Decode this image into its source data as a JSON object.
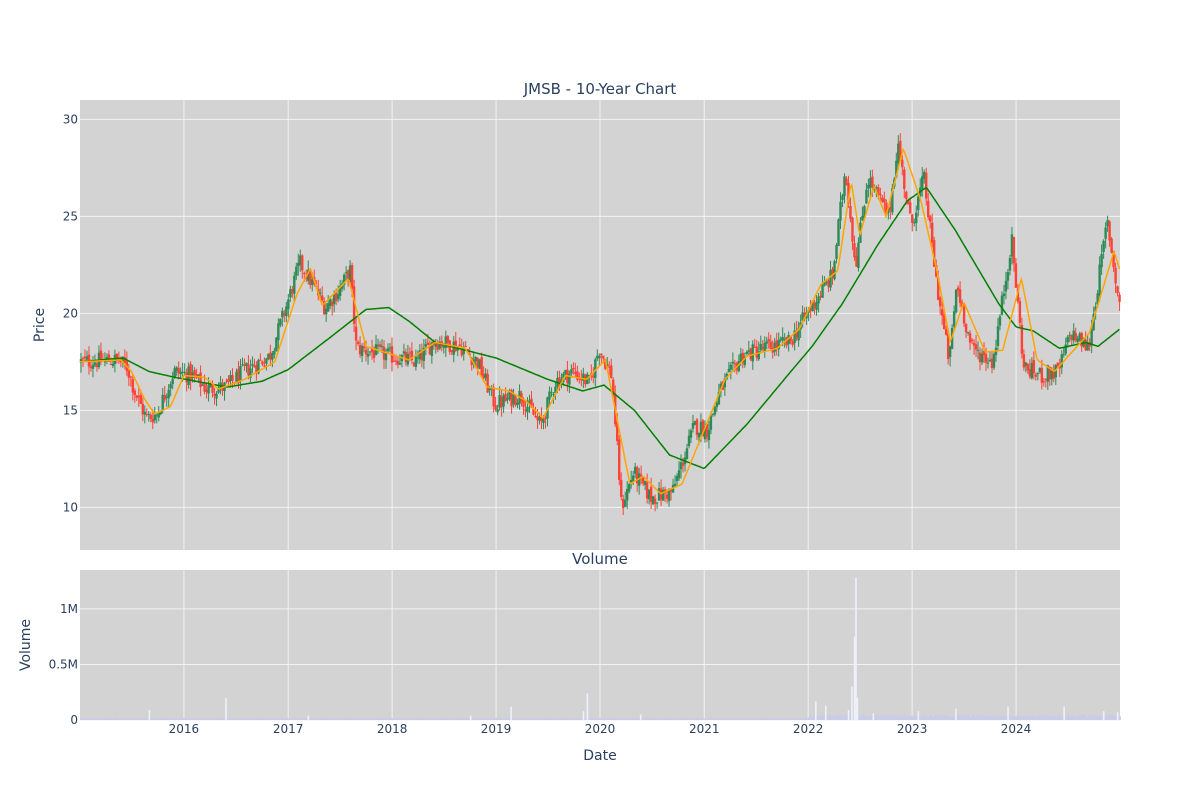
{
  "chart_data": [
    {
      "type": "candlestick",
      "title": "JMSB - 10-Year Chart",
      "xlabel": "",
      "ylabel": "Price",
      "xlim": [
        "2015-01-01",
        "2024-12-31"
      ],
      "ylim": [
        7.8,
        31
      ],
      "yticks": [
        10,
        15,
        20,
        25,
        30
      ],
      "xticks": [
        "2016",
        "2017",
        "2018",
        "2019",
        "2020",
        "2021",
        "2022",
        "2023",
        "2024"
      ],
      "grid": true,
      "legend": "none",
      "colors": {
        "up": "#2e8b57",
        "down": "#ff4136",
        "fast_ma": "#ffa500",
        "slow_ma": "#008000",
        "plot_bg": "#d3d3d3",
        "grid": "#f2f2f2"
      },
      "price_path": [
        [
          "2015-01-01",
          17.5
        ],
        [
          "2015-05-20",
          17.6
        ],
        [
          "2015-06-20",
          17.2
        ],
        [
          "2015-07-15",
          16.0
        ],
        [
          "2015-08-25",
          14.6
        ],
        [
          "2015-10-01",
          14.8
        ],
        [
          "2015-12-01",
          17.0
        ],
        [
          "2016-02-01",
          16.8
        ],
        [
          "2016-03-25",
          16.1
        ],
        [
          "2016-06-01",
          16.2
        ],
        [
          "2016-08-01",
          17.0
        ],
        [
          "2016-11-01",
          17.8
        ],
        [
          "2017-01-01",
          20.5
        ],
        [
          "2017-02-15",
          22.6
        ],
        [
          "2017-04-01",
          21.5
        ],
        [
          "2017-05-15",
          20.3
        ],
        [
          "2017-07-01",
          21.2
        ],
        [
          "2017-08-10",
          22.2
        ],
        [
          "2017-09-01",
          18.2
        ],
        [
          "2018-01-01",
          17.8
        ],
        [
          "2018-04-01",
          17.5
        ],
        [
          "2018-06-01",
          18.6
        ],
        [
          "2018-09-01",
          18.3
        ],
        [
          "2018-11-01",
          17.5
        ],
        [
          "2019-01-01",
          15.3
        ],
        [
          "2019-04-01",
          15.8
        ],
        [
          "2019-06-10",
          14.2
        ],
        [
          "2019-08-01",
          16.5
        ],
        [
          "2019-10-01",
          17.0
        ],
        [
          "2019-12-01",
          16.4
        ],
        [
          "2020-01-01",
          18.2
        ],
        [
          "2020-02-15",
          16.8
        ],
        [
          "2020-03-20",
          10.0
        ],
        [
          "2020-05-01",
          11.8
        ],
        [
          "2020-07-01",
          10.5
        ],
        [
          "2020-09-15",
          10.8
        ],
        [
          "2020-12-01",
          14.2
        ],
        [
          "2021-01-15",
          14.0
        ],
        [
          "2021-03-01",
          16.0
        ],
        [
          "2021-05-15",
          17.8
        ],
        [
          "2021-08-01",
          18.2
        ],
        [
          "2021-11-01",
          18.5
        ],
        [
          "2022-01-01",
          20.0
        ],
        [
          "2022-04-01",
          22.0
        ],
        [
          "2022-05-15",
          27.5
        ],
        [
          "2022-06-20",
          22.5
        ],
        [
          "2022-08-01",
          27.0
        ],
        [
          "2022-10-15",
          25.0
        ],
        [
          "2022-11-15",
          28.8
        ],
        [
          "2023-01-01",
          24.5
        ],
        [
          "2023-02-15",
          27.0
        ],
        [
          "2023-04-01",
          21.5
        ],
        [
          "2023-05-15",
          17.5
        ],
        [
          "2023-06-10",
          21.5
        ],
        [
          "2023-08-01",
          18.2
        ],
        [
          "2023-10-15",
          17.5
        ],
        [
          "2023-12-20",
          23.8
        ],
        [
          "2024-02-01",
          17.2
        ],
        [
          "2024-04-01",
          16.8
        ],
        [
          "2024-06-01",
          17.0
        ],
        [
          "2024-07-15",
          19.0
        ],
        [
          "2024-09-15",
          18.2
        ],
        [
          "2024-11-20",
          24.8
        ],
        [
          "2024-12-31",
          20.5
        ]
      ],
      "moving_average_fast": [
        [
          "2015-01-01",
          17.5
        ],
        [
          "2015-05-25",
          17.6
        ],
        [
          "2015-07-01",
          17.0
        ],
        [
          "2015-08-15",
          15.6
        ],
        [
          "2015-09-20",
          14.8
        ],
        [
          "2015-11-15",
          15.2
        ],
        [
          "2016-01-01",
          16.8
        ],
        [
          "2016-03-15",
          16.7
        ],
        [
          "2016-05-01",
          16.1
        ],
        [
          "2016-08-01",
          16.6
        ],
        [
          "2016-11-15",
          17.5
        ],
        [
          "2017-02-01",
          21.0
        ],
        [
          "2017-03-20",
          22.3
        ],
        [
          "2017-05-01",
          20.4
        ],
        [
          "2017-08-01",
          21.8
        ],
        [
          "2017-10-01",
          18.3
        ],
        [
          "2018-03-01",
          17.6
        ],
        [
          "2018-06-01",
          18.5
        ],
        [
          "2018-09-15",
          18.2
        ],
        [
          "2018-12-01",
          16.2
        ],
        [
          "2019-02-15",
          16.0
        ],
        [
          "2019-04-15",
          15.5
        ],
        [
          "2019-06-15",
          14.6
        ],
        [
          "2019-09-01",
          16.8
        ],
        [
          "2019-11-15",
          16.6
        ],
        [
          "2020-01-20",
          17.6
        ],
        [
          "2020-04-15",
          11.2
        ],
        [
          "2020-06-01",
          11.6
        ],
        [
          "2020-08-01",
          10.7
        ],
        [
          "2020-10-15",
          11.2
        ],
        [
          "2021-01-01",
          14.0
        ],
        [
          "2021-03-15",
          16.6
        ],
        [
          "2021-06-01",
          17.8
        ],
        [
          "2021-09-15",
          18.2
        ],
        [
          "2021-12-01",
          19.2
        ],
        [
          "2022-02-15",
          21.5
        ],
        [
          "2022-04-15",
          22.2
        ],
        [
          "2022-06-01",
          26.8
        ],
        [
          "2022-07-01",
          24.0
        ],
        [
          "2022-08-20",
          26.6
        ],
        [
          "2022-10-01",
          25.0
        ],
        [
          "2022-12-01",
          28.5
        ],
        [
          "2023-02-01",
          25.8
        ],
        [
          "2023-04-01",
          22.0
        ],
        [
          "2023-05-15",
          18.5
        ],
        [
          "2023-07-01",
          20.6
        ],
        [
          "2023-09-15",
          18.0
        ],
        [
          "2023-11-15",
          18.1
        ],
        [
          "2024-01-20",
          21.8
        ],
        [
          "2024-03-15",
          17.6
        ],
        [
          "2024-05-15",
          17.0
        ],
        [
          "2024-07-15",
          18.0
        ],
        [
          "2024-09-15",
          19.0
        ],
        [
          "2024-12-10",
          23.2
        ],
        [
          "2024-12-31",
          22.2
        ]
      ],
      "moving_average_slow": [
        [
          "2015-01-01",
          17.5
        ],
        [
          "2015-06-01",
          17.7
        ],
        [
          "2015-09-01",
          17.0
        ],
        [
          "2015-12-01",
          16.7
        ],
        [
          "2016-06-01",
          16.2
        ],
        [
          "2016-10-01",
          16.5
        ],
        [
          "2017-01-01",
          17.1
        ],
        [
          "2017-06-01",
          18.8
        ],
        [
          "2017-10-01",
          20.2
        ],
        [
          "2017-12-20",
          20.3
        ],
        [
          "2018-03-01",
          19.6
        ],
        [
          "2018-06-01",
          18.5
        ],
        [
          "2019-01-01",
          17.7
        ],
        [
          "2019-07-01",
          16.6
        ],
        [
          "2019-11-01",
          16.0
        ],
        [
          "2020-01-15",
          16.3
        ],
        [
          "2020-05-01",
          15.0
        ],
        [
          "2020-09-01",
          12.7
        ],
        [
          "2021-01-01",
          12.0
        ],
        [
          "2021-06-01",
          14.3
        ],
        [
          "2021-11-01",
          17.0
        ],
        [
          "2022-01-15",
          18.3
        ],
        [
          "2022-05-01",
          20.5
        ],
        [
          "2022-09-01",
          23.5
        ],
        [
          "2022-12-15",
          25.8
        ],
        [
          "2023-02-20",
          26.5
        ],
        [
          "2023-06-01",
          24.3
        ],
        [
          "2023-11-01",
          20.5
        ],
        [
          "2024-01-01",
          19.3
        ],
        [
          "2024-03-01",
          19.1
        ],
        [
          "2024-06-01",
          18.2
        ],
        [
          "2024-09-01",
          18.5
        ],
        [
          "2024-10-15",
          18.3
        ],
        [
          "2024-12-31",
          19.2
        ]
      ]
    },
    {
      "type": "bar",
      "title": "Volume",
      "xlabel": "Date",
      "ylabel": "Volume",
      "xlim": [
        "2015-01-01",
        "2024-12-31"
      ],
      "ylim": [
        0,
        1350000
      ],
      "yticks": [
        0,
        500000,
        1000000
      ],
      "ytick_labels": [
        "0",
        "0.5M",
        "1M"
      ],
      "xticks": [
        "2016",
        "2017",
        "2018",
        "2019",
        "2020",
        "2021",
        "2022",
        "2023",
        "2024"
      ],
      "grid": true,
      "colors": {
        "bar": "#c8cce6",
        "plot_bg": "#d3d3d3",
        "grid": "#f2f2f2"
      },
      "volume_spikes": [
        [
          "2015-08-30",
          90000
        ],
        [
          "2016-05-25",
          200000
        ],
        [
          "2017-03-10",
          40000
        ],
        [
          "2018-10-01",
          40000
        ],
        [
          "2019-02-20",
          120000
        ],
        [
          "2019-11-01",
          80000
        ],
        [
          "2019-11-15",
          240000
        ],
        [
          "2020-05-20",
          50000
        ],
        [
          "2022-01-25",
          170000
        ],
        [
          "2022-03-01",
          130000
        ],
        [
          "2022-05-20",
          90000
        ],
        [
          "2022-06-01",
          300000
        ],
        [
          "2022-06-10",
          750000
        ],
        [
          "2022-06-15",
          1280000
        ],
        [
          "2022-06-20",
          200000
        ],
        [
          "2022-08-15",
          60000
        ],
        [
          "2023-01-20",
          80000
        ],
        [
          "2023-06-01",
          100000
        ],
        [
          "2023-12-01",
          120000
        ],
        [
          "2024-06-15",
          120000
        ],
        [
          "2024-11-01",
          80000
        ],
        [
          "2024-12-20",
          70000
        ]
      ]
    }
  ]
}
